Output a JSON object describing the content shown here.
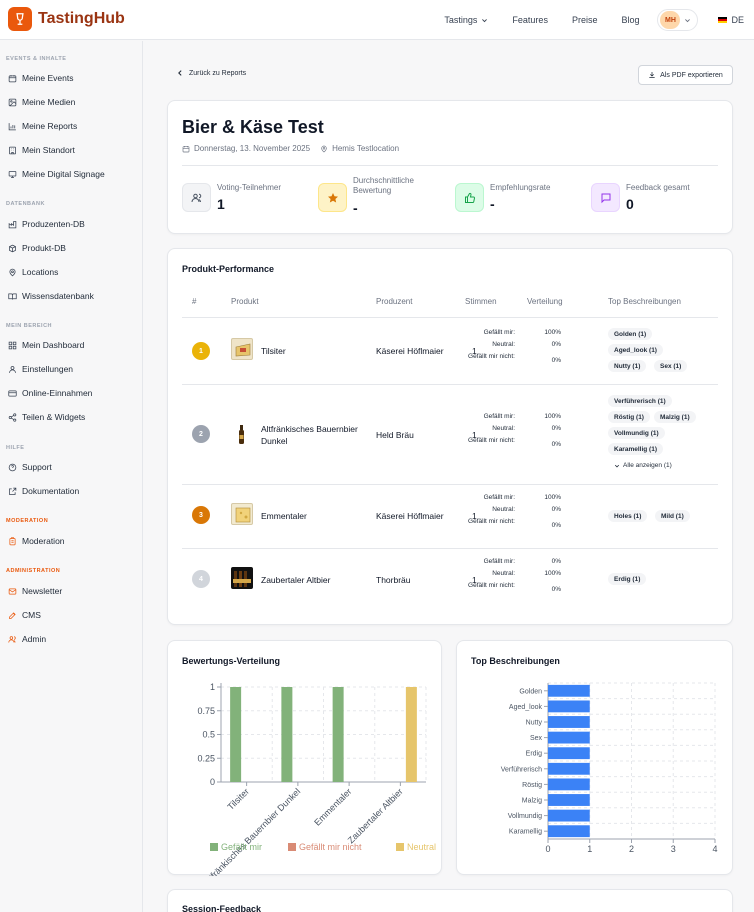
{
  "app": {
    "name": "TastingHub"
  },
  "nav": {
    "items": [
      "Tastings",
      "Features",
      "Preise",
      "Blog"
    ],
    "avatar": "MH",
    "lang": "DE"
  },
  "sidebar": {
    "sections": [
      {
        "title": "EVENTS & INHALTE",
        "items": [
          "Meine Events",
          "Meine Medien",
          "Meine Reports",
          "Mein Standort",
          "Meine Digital Signage"
        ]
      },
      {
        "title": "DATENBANK",
        "items": [
          "Produzenten-DB",
          "Produkt-DB",
          "Locations",
          "Wissensdatenbank"
        ]
      },
      {
        "title": "MEIN BEREICH",
        "items": [
          "Mein Dashboard",
          "Einstellungen",
          "Online-Einnahmen",
          "Teilen & Widgets"
        ]
      },
      {
        "title": "HILFE",
        "items": [
          "Support",
          "Dokumentation"
        ]
      },
      {
        "title": "MODERATION",
        "items": [
          "Moderation"
        ]
      },
      {
        "title": "ADMINISTRATION",
        "items": [
          "Newsletter",
          "CMS",
          "Admin"
        ]
      }
    ]
  },
  "main": {
    "back_label": "Zurück zu Reports",
    "pdf_label": "Als PDF exportieren",
    "event": {
      "title": "Bier & Käse Test",
      "date": "Donnerstag, 13. November 2025",
      "location": "Hemis Testlocation"
    },
    "stats": [
      {
        "label": "Voting-Teilnehmer",
        "value": "1"
      },
      {
        "label": "Durchschnittliche Bewertung",
        "value": "-"
      },
      {
        "label": "Empfehlungsrate",
        "value": "-"
      },
      {
        "label": "Feedback gesamt",
        "value": "0"
      }
    ],
    "performance": {
      "title": "Produkt-Performance",
      "headers": [
        "#",
        "Produkt",
        "Produzent",
        "Stimmen",
        "Verteilung",
        "Top Beschreibungen"
      ],
      "dist_labels": [
        "Gefällt mir:",
        "Neutral:",
        "Gefällt mir nicht:"
      ],
      "show_all_label": "Alle anzeigen (1)",
      "rows": [
        {
          "rank": "1",
          "product": "Tilsiter",
          "producer": "Käserei Höflmaier",
          "votes": "1",
          "dist": [
            "100%",
            "0%",
            "0%"
          ],
          "tags": [
            "Golden (1)",
            "Aged_look (1)",
            "Nutty (1)",
            "Sex (1)"
          ]
        },
        {
          "rank": "2",
          "product": "Altfränkisches Bauernbier Dunkel",
          "producer": "Held Bräu",
          "votes": "1",
          "dist": [
            "100%",
            "0%",
            "0%"
          ],
          "tags": [
            "Verführerisch (1)",
            "Röstig (1)",
            "Malzig (1)",
            "Vollmundig (1)",
            "Karamellig (1)"
          ]
        },
        {
          "rank": "3",
          "product": "Emmentaler",
          "producer": "Käserei Höflmaier",
          "votes": "1",
          "dist": [
            "100%",
            "0%",
            "0%"
          ],
          "tags": [
            "Holes (1)",
            "Mild (1)"
          ]
        },
        {
          "rank": "4",
          "product": "Zaubertaler Altbier",
          "producer": "Thorbräu",
          "votes": "1",
          "dist": [
            "0%",
            "100%",
            "0%"
          ],
          "tags": [
            "Erdig (1)"
          ]
        }
      ]
    },
    "rating_chart_title": "Bewertungs-Verteilung",
    "top_desc_title": "Top Beschreibungen",
    "feedback_title": "Session-Feedback"
  },
  "chart_data": [
    {
      "type": "bar",
      "title": "Bewertungs-Verteilung",
      "categories": [
        "Tilsiter",
        "Altfränkisches Bauernbier Dunkel",
        "Emmentaler",
        "Zaubertaler Altbier"
      ],
      "series": [
        {
          "name": "Gefällt mir",
          "color": "#82b27a",
          "values": [
            1,
            1,
            1,
            0
          ]
        },
        {
          "name": "Gefällt mir nicht",
          "color": "#d98b75",
          "values": [
            0,
            0,
            0,
            0
          ]
        },
        {
          "name": "Neutral",
          "color": "#e6c56b",
          "values": [
            0,
            0,
            0,
            1
          ]
        }
      ],
      "ylim": [
        0,
        1
      ],
      "yticks": [
        "0",
        "0.25",
        "0.5",
        "0.75",
        "1"
      ],
      "grid": true,
      "legend": "bottom"
    },
    {
      "type": "bar",
      "orientation": "horizontal",
      "title": "Top Beschreibungen",
      "categories": [
        "Golden",
        "Aged_look",
        "Nutty",
        "Sex",
        "Erdig",
        "Verführerisch",
        "Röstig",
        "Malzig",
        "Vollmundig",
        "Karamellig"
      ],
      "values": [
        1,
        1,
        1,
        1,
        1,
        1,
        1,
        1,
        1,
        1
      ],
      "color": "#3b82f6",
      "xlim": [
        0,
        4
      ],
      "xticks": [
        "0",
        "1",
        "2",
        "3",
        "4"
      ],
      "grid": true
    }
  ]
}
